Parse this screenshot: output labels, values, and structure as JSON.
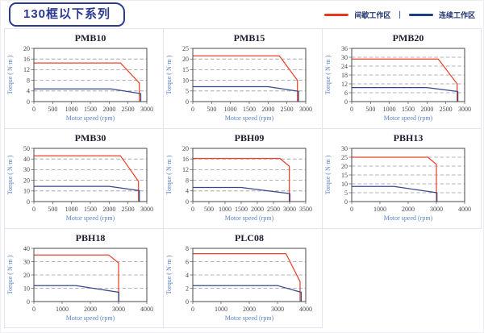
{
  "page": {
    "title": "130框以下系列",
    "legend": {
      "separator": "|",
      "items": [
        {
          "label": "间歇工作区",
          "color": "#e5391b"
        },
        {
          "label": "连续工作区",
          "color": "#1e3a8a"
        }
      ]
    }
  },
  "chart_defaults": {
    "grid": "horizontal-dashed",
    "legend_position": "page-header",
    "series_colors": {
      "intermittent": "#e8432a",
      "continuous": "#35498f"
    }
  },
  "chart_data": [
    {
      "type": "line",
      "title": "PMB10",
      "xlabel": "Motor speed (rpm)",
      "ylabel": "Torque ( N·m )",
      "xlim": [
        0,
        3000
      ],
      "ylim": [
        0,
        20
      ],
      "xticks": [
        0,
        500,
        1000,
        1500,
        2000,
        2500,
        3000
      ],
      "yticks": [
        0,
        4,
        8,
        12,
        16,
        20
      ],
      "series": [
        {
          "name": "间歇工作区",
          "color": "#e8432a",
          "points": [
            [
              0,
              14.5
            ],
            [
              2300,
              14.5
            ],
            [
              2800,
              7
            ],
            [
              2800,
              0
            ]
          ]
        },
        {
          "name": "连续工作区",
          "color": "#35498f",
          "points": [
            [
              0,
              4.8
            ],
            [
              2050,
              4.8
            ],
            [
              2840,
              3
            ],
            [
              2840,
              0
            ]
          ]
        }
      ]
    },
    {
      "type": "line",
      "title": "PMB15",
      "xlabel": "Motor speed (rpm)",
      "ylabel": "Torque ( N·m )",
      "xlim": [
        0,
        3000
      ],
      "ylim": [
        0,
        25
      ],
      "xticks": [
        0,
        500,
        1000,
        1500,
        2000,
        2500,
        3000
      ],
      "yticks": [
        0,
        5,
        10,
        15,
        20,
        25
      ],
      "series": [
        {
          "name": "间歇工作区",
          "color": "#e8432a",
          "points": [
            [
              0,
              21.5
            ],
            [
              2300,
              21.5
            ],
            [
              2780,
              10
            ],
            [
              2780,
              0
            ]
          ]
        },
        {
          "name": "连续工作区",
          "color": "#35498f",
          "points": [
            [
              0,
              7
            ],
            [
              2000,
              7
            ],
            [
              2810,
              4.8
            ],
            [
              2810,
              0
            ]
          ]
        }
      ]
    },
    {
      "type": "line",
      "title": "PMB20",
      "xlabel": "Motor speed (rpm)",
      "ylabel": "Torque ( N·m )",
      "xlim": [
        0,
        3000
      ],
      "ylim": [
        0,
        36
      ],
      "xticks": [
        0,
        500,
        1000,
        1500,
        2000,
        2500,
        3000
      ],
      "yticks": [
        0,
        6,
        12,
        18,
        24,
        30,
        36
      ],
      "series": [
        {
          "name": "间歇工作区",
          "color": "#e8432a",
          "points": [
            [
              0,
              28.8
            ],
            [
              2300,
              28.8
            ],
            [
              2800,
              12
            ],
            [
              2800,
              0
            ]
          ]
        },
        {
          "name": "连续工作区",
          "color": "#35498f",
          "points": [
            [
              0,
              9.5
            ],
            [
              2000,
              9.5
            ],
            [
              2820,
              6.8
            ],
            [
              2820,
              0
            ]
          ]
        }
      ]
    },
    {
      "type": "line",
      "title": "PMB30",
      "xlabel": "Motor speed (rpm)",
      "ylabel": "Torque ( N·m )",
      "xlim": [
        0,
        3000
      ],
      "ylim": [
        0,
        50
      ],
      "xticks": [
        0,
        500,
        1000,
        1500,
        2000,
        2500,
        3000
      ],
      "yticks": [
        0,
        10,
        20,
        30,
        40,
        50
      ],
      "series": [
        {
          "name": "间歇工作区",
          "color": "#e8432a",
          "points": [
            [
              0,
              43
            ],
            [
              2300,
              43
            ],
            [
              2780,
              19
            ],
            [
              2780,
              0
            ]
          ]
        },
        {
          "name": "连续工作区",
          "color": "#35498f",
          "points": [
            [
              0,
              14.3
            ],
            [
              2000,
              14.3
            ],
            [
              2800,
              10.3
            ],
            [
              2800,
              0
            ]
          ]
        }
      ]
    },
    {
      "type": "line",
      "title": "PBH09",
      "xlabel": "Motor speed (rpm)",
      "ylabel": "Torque ( N·m )",
      "xlim": [
        0,
        3500
      ],
      "ylim": [
        0,
        20
      ],
      "xticks": [
        0,
        500,
        1000,
        1500,
        2000,
        2500,
        3000,
        3500
      ],
      "yticks": [
        0,
        4,
        8,
        12,
        16,
        20
      ],
      "series": [
        {
          "name": "间歇工作区",
          "color": "#e8432a",
          "points": [
            [
              0,
              16.2
            ],
            [
              2700,
              16.2
            ],
            [
              2990,
              13.3
            ],
            [
              2990,
              0
            ]
          ]
        },
        {
          "name": "连续工作区",
          "color": "#35498f",
          "points": [
            [
              0,
              5.3
            ],
            [
              1500,
              5.3
            ],
            [
              3010,
              3
            ],
            [
              3010,
              0
            ]
          ]
        }
      ]
    },
    {
      "type": "line",
      "title": "PBH13",
      "xlabel": "Motor speed (rpm)",
      "ylabel": "Torque ( N·m )",
      "xlim": [
        0,
        4000
      ],
      "ylim": [
        0,
        30
      ],
      "xticks": [
        0,
        1000,
        2000,
        3000,
        4000
      ],
      "yticks": [
        0,
        5,
        10,
        15,
        20,
        25,
        30
      ],
      "series": [
        {
          "name": "间歇工作区",
          "color": "#e8432a",
          "points": [
            [
              0,
              25
            ],
            [
              2700,
              25
            ],
            [
              3000,
              21
            ],
            [
              3000,
              0
            ]
          ]
        },
        {
          "name": "连续工作区",
          "color": "#35498f",
          "points": [
            [
              0,
              8.5
            ],
            [
              1500,
              8.5
            ],
            [
              3020,
              5
            ],
            [
              3020,
              0
            ]
          ]
        }
      ]
    },
    {
      "type": "line",
      "title": "PBH18",
      "xlabel": "Motor speed (rpm)",
      "ylabel": "Torque ( N·m )",
      "xlim": [
        0,
        4000
      ],
      "ylim": [
        0,
        40
      ],
      "xticks": [
        0,
        1000,
        2000,
        3000,
        4000
      ],
      "yticks": [
        0,
        10,
        20,
        30,
        40
      ],
      "series": [
        {
          "name": "间歇工作区",
          "color": "#e8432a",
          "points": [
            [
              0,
              35
            ],
            [
              2650,
              35
            ],
            [
              3000,
              29
            ],
            [
              3000,
              0
            ]
          ]
        },
        {
          "name": "连续工作区",
          "color": "#35498f",
          "points": [
            [
              0,
              12
            ],
            [
              1500,
              12
            ],
            [
              3010,
              7
            ],
            [
              3010,
              0
            ]
          ]
        }
      ]
    },
    {
      "type": "line",
      "title": "PLC08",
      "xlabel": "Motor speed (rpm)",
      "ylabel": "Torque ( N·m )",
      "xlim": [
        0,
        4000
      ],
      "ylim": [
        0,
        8
      ],
      "xticks": [
        0,
        1000,
        2000,
        3000,
        4000
      ],
      "yticks": [
        0,
        2,
        4,
        6,
        8
      ],
      "series": [
        {
          "name": "间歇工作区",
          "color": "#e8432a",
          "points": [
            [
              0,
              7.2
            ],
            [
              3300,
              7.2
            ],
            [
              3800,
              3
            ],
            [
              3800,
              0
            ]
          ]
        },
        {
          "name": "连续工作区",
          "color": "#35498f",
          "points": [
            [
              0,
              2.4
            ],
            [
              3000,
              2.4
            ],
            [
              3840,
              1.4
            ],
            [
              3840,
              0
            ]
          ]
        }
      ]
    }
  ]
}
